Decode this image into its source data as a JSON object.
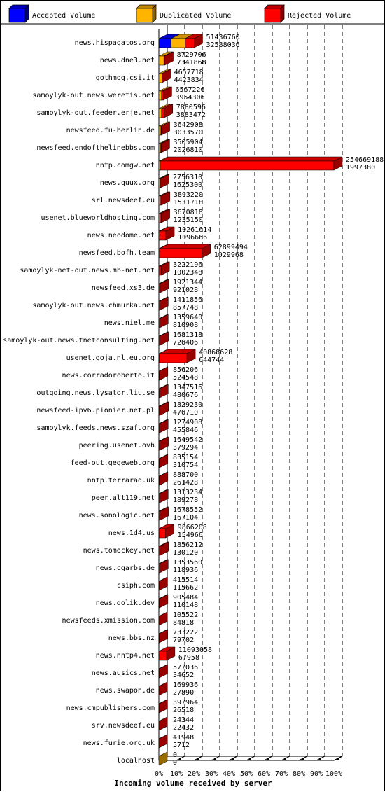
{
  "chart_data": {
    "type": "bar",
    "orientation": "horizontal",
    "stacked": true,
    "percent_axis": true,
    "xlabel": "Incoming volume received by server",
    "x_ticks": [
      "0%",
      "10%",
      "20%",
      "30%",
      "40%",
      "50%",
      "60%",
      "70%",
      "80%",
      "90%",
      "100%"
    ],
    "grid": "vertical dashed",
    "legend_position": "top",
    "series": [
      {
        "name": "Accepted Volume",
        "color": "#0000ff"
      },
      {
        "name": "Duplicated Volume",
        "color": "#ffb400"
      },
      {
        "name": "Rejected Volume",
        "color": "#ff0000"
      }
    ],
    "rows": [
      {
        "server": "news.hispagatos.org",
        "total": 51436760,
        "accepted": 32588036
      },
      {
        "server": "news.dne3.net",
        "total": 8729706,
        "accepted": 7341868
      },
      {
        "server": "gothmog.csi.it",
        "total": 4657718,
        "accepted": 4423834
      },
      {
        "server": "samoylyk-out.news.weretis.net",
        "total": 6567226,
        "accepted": 3954306
      },
      {
        "server": "samoylyk-out.feeder.erje.net",
        "total": 7880596,
        "accepted": 3883472
      },
      {
        "server": "newsfeed.fu-berlin.de",
        "total": 3642908,
        "accepted": 3033570
      },
      {
        "server": "newsfeed.endofthelinebbs.com",
        "total": 3505904,
        "accepted": 2026810
      },
      {
        "server": "nntp.comgw.net",
        "total": 254669188,
        "accepted": 1997380
      },
      {
        "server": "news.quux.org",
        "total": 2756310,
        "accepted": 1625300
      },
      {
        "server": "srl.newsdeef.eu",
        "total": 3893220,
        "accepted": 1531718
      },
      {
        "server": "usenet.blueworldhosting.com",
        "total": 3670818,
        "accepted": 1235150
      },
      {
        "server": "news.neodome.net",
        "total": 10261614,
        "accepted": 1096666
      },
      {
        "server": "newsfeed.bofh.team",
        "total": 62899494,
        "accepted": 1029968
      },
      {
        "server": "samoylyk-net-out.news.mb-net.net",
        "total": 3222196,
        "accepted": 1002348
      },
      {
        "server": "newsfeed.xs3.de",
        "total": 1921344,
        "accepted": 921028
      },
      {
        "server": "samoylyk-out.news.chmurka.net",
        "total": 1411856,
        "accepted": 857748
      },
      {
        "server": "news.niel.me",
        "total": 1359640,
        "accepted": 810908
      },
      {
        "server": "samoylyk-out.news.tnetconsulting.net",
        "total": 1681318,
        "accepted": 726406
      },
      {
        "server": "usenet.goja.nl.eu.org",
        "total": 40868628,
        "accepted": 644744
      },
      {
        "server": "news.corradoroberto.it",
        "total": 856206,
        "accepted": 524548
      },
      {
        "server": "outgoing.news.lysator.liu.se",
        "total": 1347516,
        "accepted": 480676
      },
      {
        "server": "newsfeed-ipv6.pionier.net.pl",
        "total": 1829230,
        "accepted": 476710
      },
      {
        "server": "samoylyk.feeds.news.szaf.org",
        "total": 1274908,
        "accepted": 455846
      },
      {
        "server": "peering.usenet.ovh",
        "total": 1649542,
        "accepted": 379294
      },
      {
        "server": "feed-out.gegeweb.org",
        "total": 835154,
        "accepted": 310754
      },
      {
        "server": "nntp.terraraq.uk",
        "total": 888700,
        "accepted": 261428
      },
      {
        "server": "peer.alt119.net",
        "total": 1313234,
        "accepted": 189278
      },
      {
        "server": "news.sonologic.net",
        "total": 1678552,
        "accepted": 167104
      },
      {
        "server": "news.1d4.us",
        "total": 9866208,
        "accepted": 154966
      },
      {
        "server": "news.tomockey.net",
        "total": 1856212,
        "accepted": 130120
      },
      {
        "server": "news.cgarbs.de",
        "total": 1353560,
        "accepted": 118936
      },
      {
        "server": "csiph.com",
        "total": 415514,
        "accepted": 115662
      },
      {
        "server": "news.dolik.dev",
        "total": 905484,
        "accepted": 110148
      },
      {
        "server": "newsfeeds.xmission.com",
        "total": 105522,
        "accepted": 84818
      },
      {
        "server": "news.bbs.nz",
        "total": 733222,
        "accepted": 79702
      },
      {
        "server": "news.nntp4.net",
        "total": 11093058,
        "accepted": 67958
      },
      {
        "server": "news.ausics.net",
        "total": 577036,
        "accepted": 34652
      },
      {
        "server": "news.swapon.de",
        "total": 169936,
        "accepted": 27890
      },
      {
        "server": "news.cmpublishers.com",
        "total": 397964,
        "accepted": 26518
      },
      {
        "server": "srv.newsdeef.eu",
        "total": 24344,
        "accepted": 22432
      },
      {
        "server": "news.furie.org.uk",
        "total": 41948,
        "accepted": 5712
      },
      {
        "server": "localhost",
        "total": 0,
        "accepted": 0
      }
    ]
  }
}
